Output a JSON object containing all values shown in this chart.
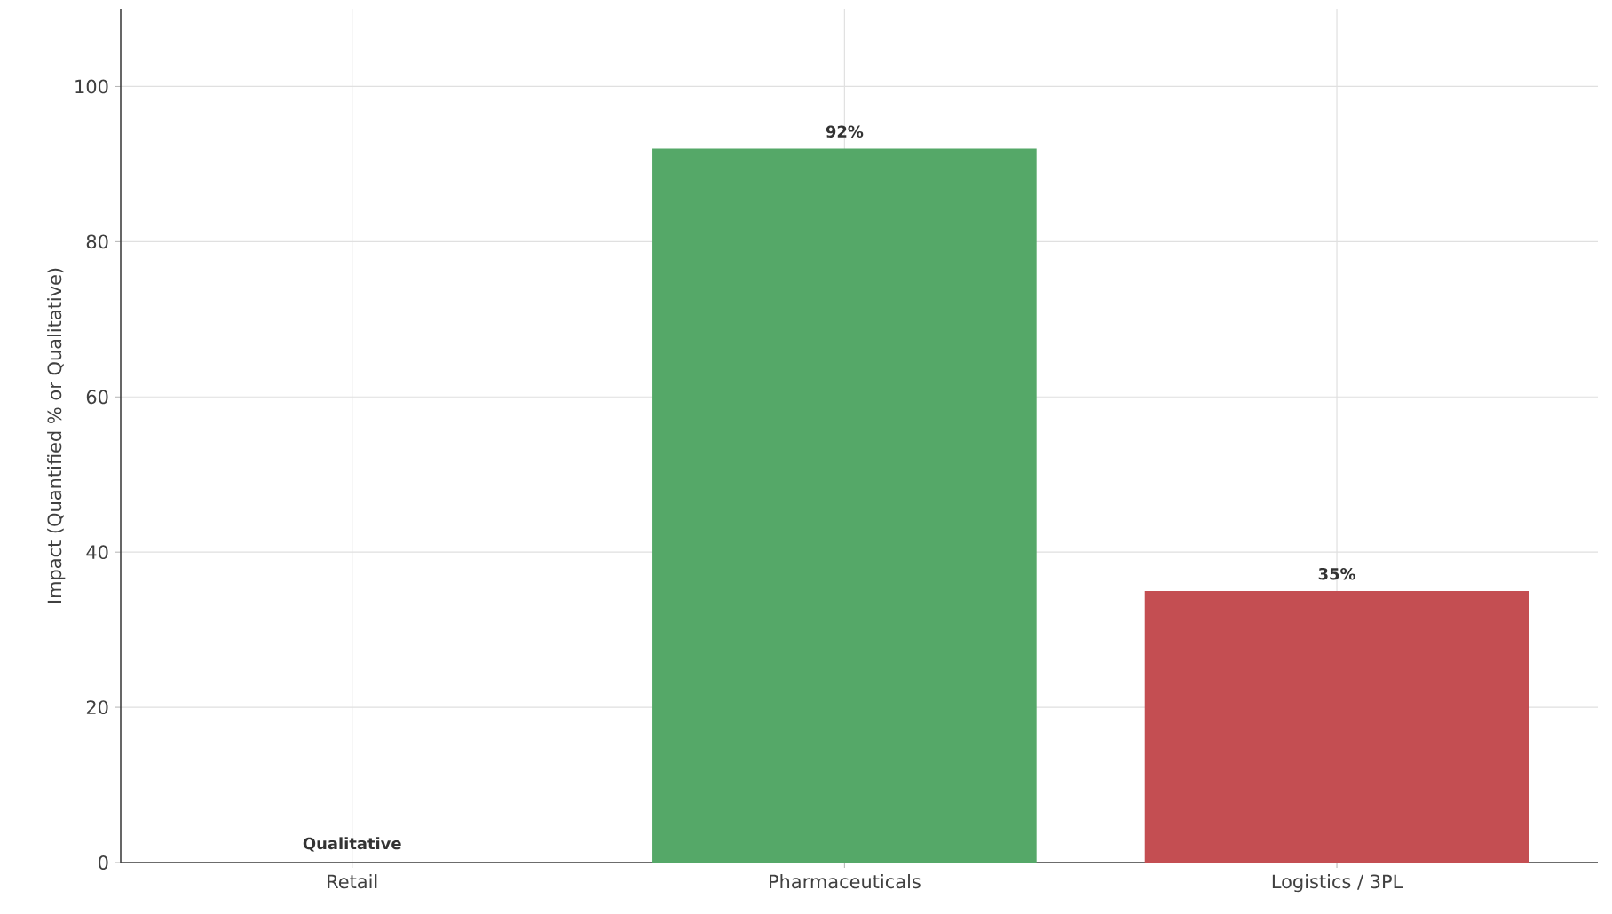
{
  "chart_data": {
    "type": "bar",
    "ylabel": "Impact (Quantified % or Qualitative)",
    "categories": [
      "Retail",
      "Pharmaceuticals",
      "Logistics / 3PL"
    ],
    "values": [
      0,
      92,
      35
    ],
    "colors": [
      "#4c72b0",
      "#55a868",
      "#c44e52"
    ],
    "value_labels": [
      "Qualitative",
      "92%",
      "35%"
    ],
    "ylim": [
      0,
      110
    ],
    "yticks": [
      0,
      20,
      40,
      60,
      80,
      100
    ],
    "grid": true
  }
}
